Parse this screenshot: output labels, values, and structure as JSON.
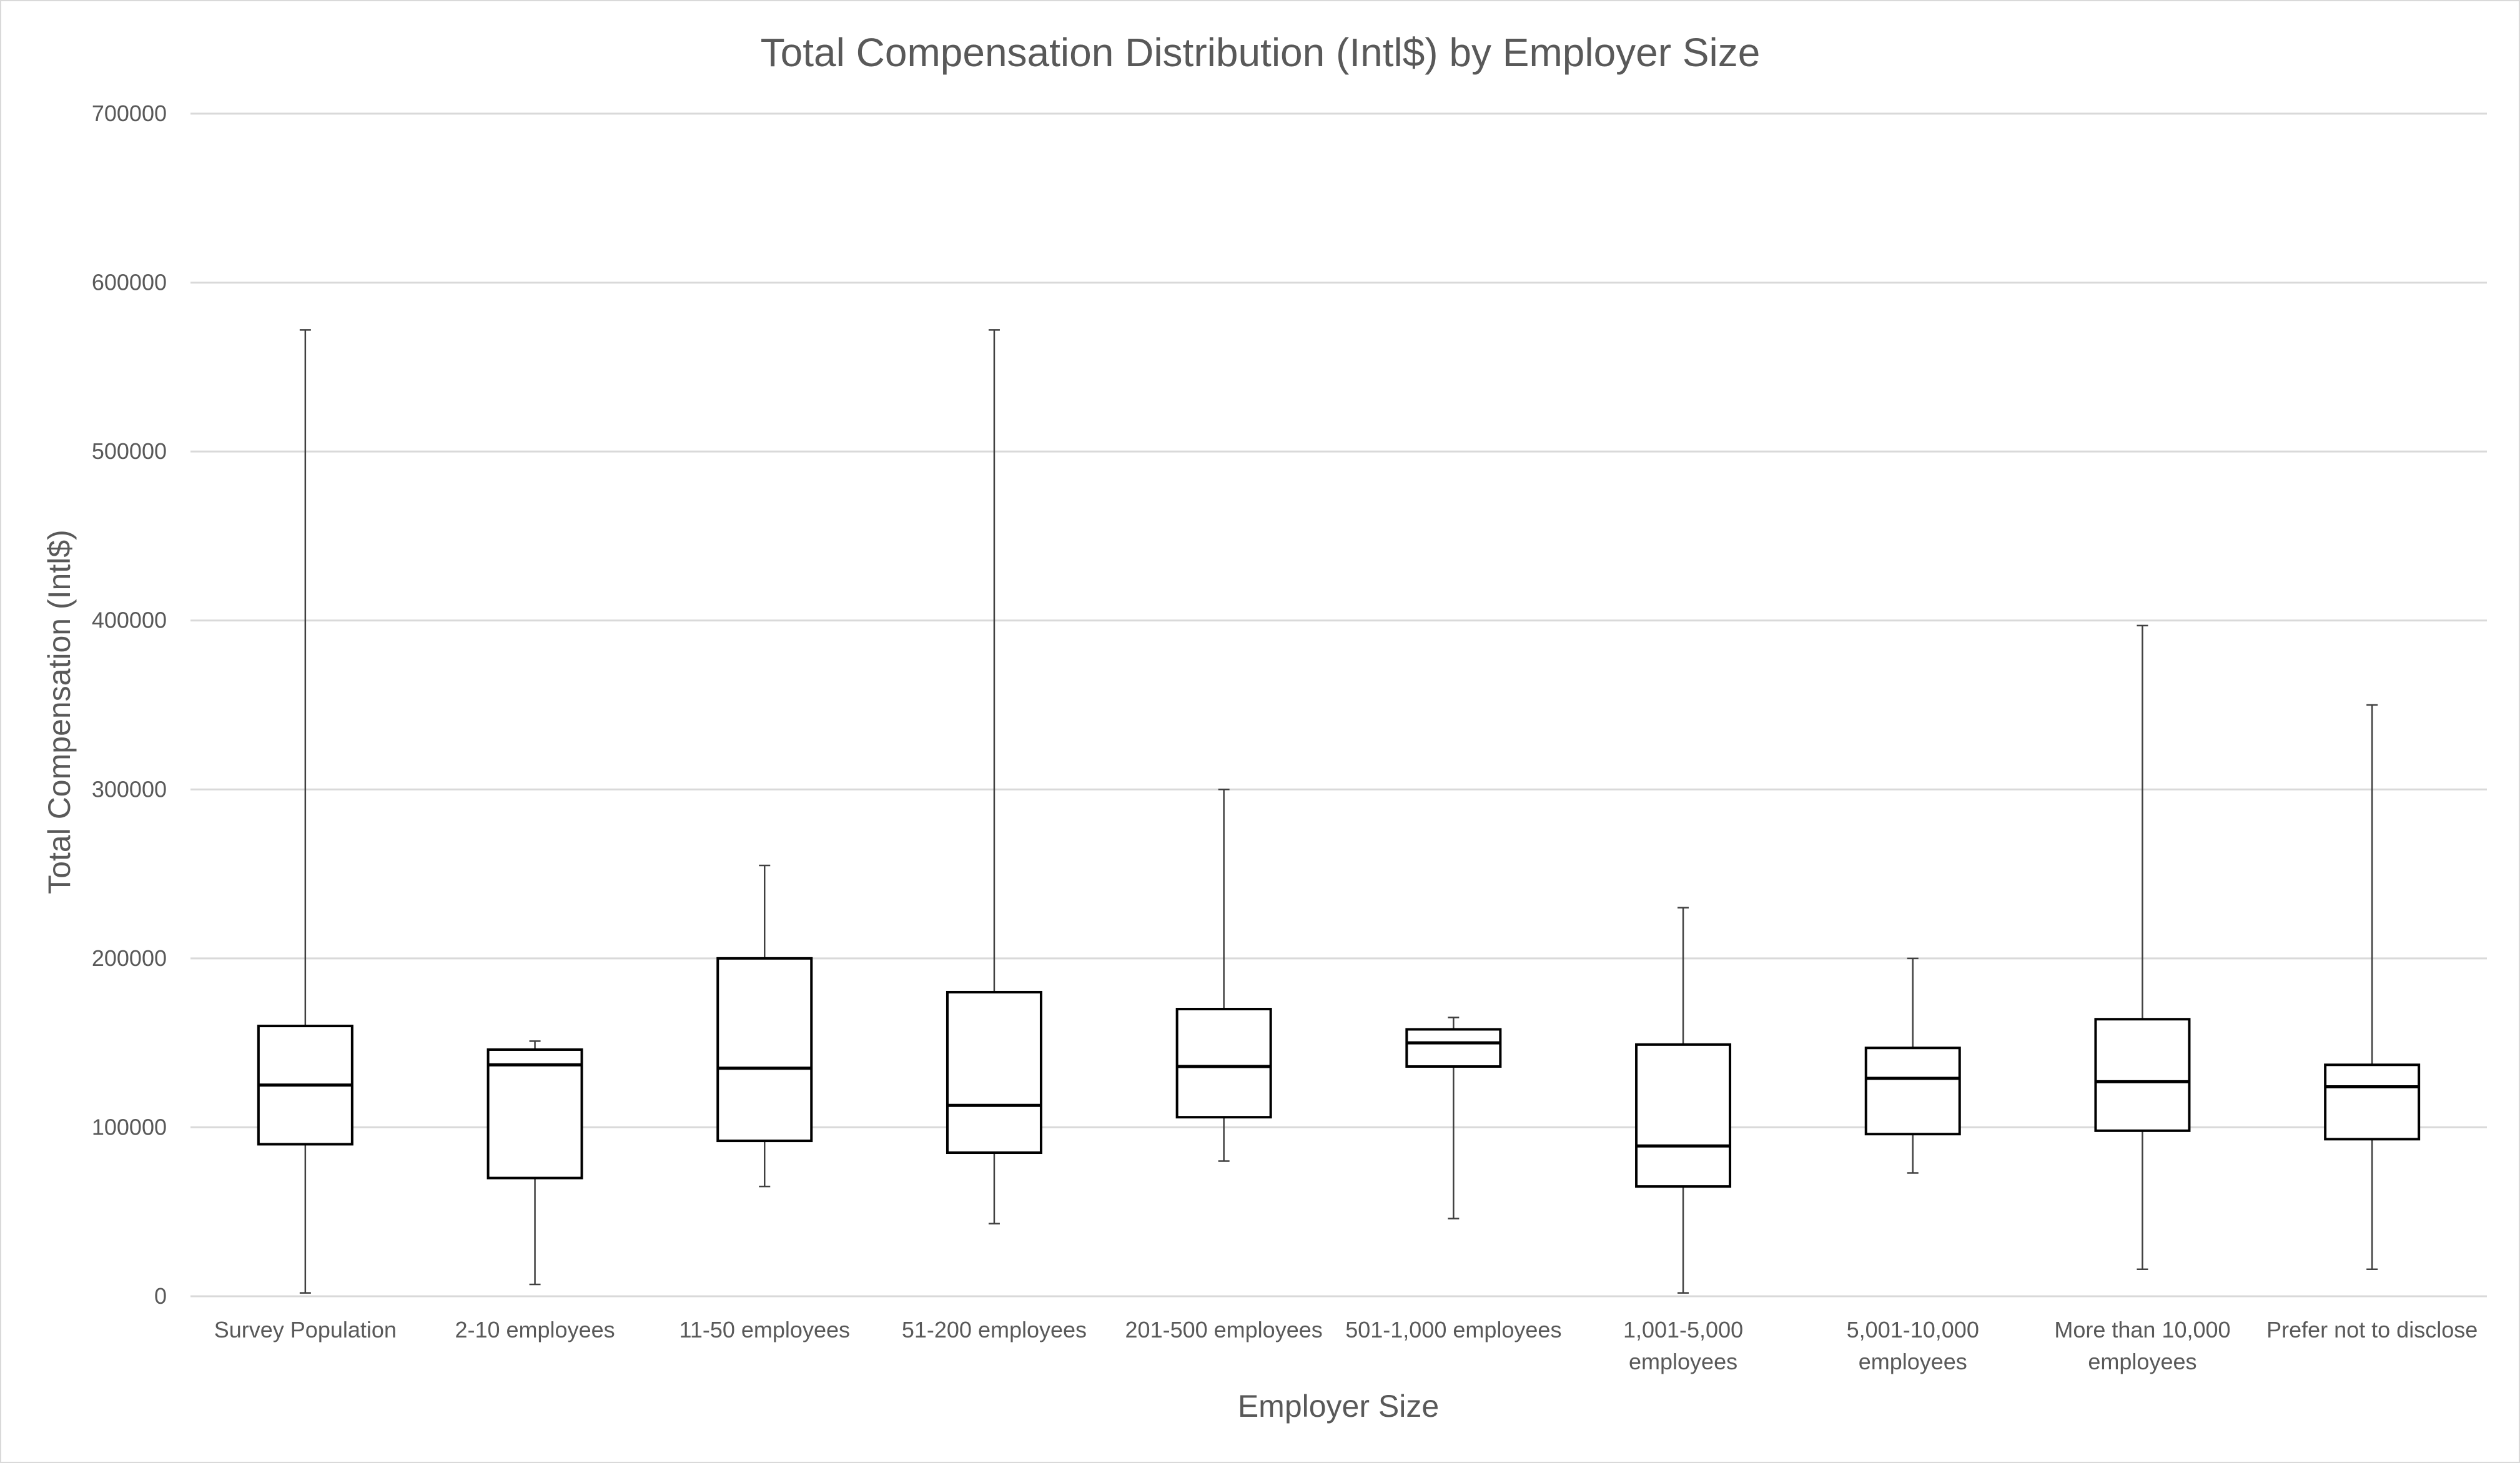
{
  "chart_data": {
    "type": "boxplot",
    "title": "Total Compensation Distribution (Intl$) by Employer Size",
    "xlabel": "Employer Size",
    "ylabel": "Total Compensation (Intl$)",
    "ylim": [
      0,
      700000
    ],
    "yticks": [
      "0",
      "100000",
      "200000",
      "300000",
      "400000",
      "500000",
      "600000",
      "700000"
    ],
    "grid": "horizontal",
    "colors": {
      "text": "#595959",
      "grid": "#d9d9d9",
      "box_stroke": "#000000",
      "box_fill": "#ffffff"
    },
    "categories": [
      [
        "Survey Population"
      ],
      [
        "2-10 employees"
      ],
      [
        "11-50 employees"
      ],
      [
        "51-200 employees"
      ],
      [
        "201-500 employees"
      ],
      [
        "501-1,000 employees"
      ],
      [
        "1,001-5,000",
        "employees"
      ],
      [
        "5,001-10,000",
        "employees"
      ],
      [
        "More than 10,000",
        "employees"
      ],
      [
        "Prefer not to disclose"
      ]
    ],
    "boxes": [
      {
        "min": 2000,
        "q1": 90000,
        "median": 125000,
        "q3": 160000,
        "max": 572000
      },
      {
        "min": 7000,
        "q1": 70000,
        "median": 137000,
        "q3": 146000,
        "max": 151000
      },
      {
        "min": 65000,
        "q1": 92000,
        "median": 135000,
        "q3": 200000,
        "max": 255000
      },
      {
        "min": 43000,
        "q1": 85000,
        "median": 113000,
        "q3": 180000,
        "max": 572000
      },
      {
        "min": 80000,
        "q1": 106000,
        "median": 136000,
        "q3": 170000,
        "max": 300000
      },
      {
        "min": 46000,
        "q1": 136000,
        "median": 150000,
        "q3": 158000,
        "max": 165000
      },
      {
        "min": 2000,
        "q1": 65000,
        "median": 89000,
        "q3": 149000,
        "max": 230000
      },
      {
        "min": 73000,
        "q1": 96000,
        "median": 129000,
        "q3": 147000,
        "max": 200000
      },
      {
        "min": 16000,
        "q1": 98000,
        "median": 127000,
        "q3": 164000,
        "max": 397000
      },
      {
        "min": 16000,
        "q1": 93000,
        "median": 124000,
        "q3": 137000,
        "max": 350000
      }
    ]
  }
}
